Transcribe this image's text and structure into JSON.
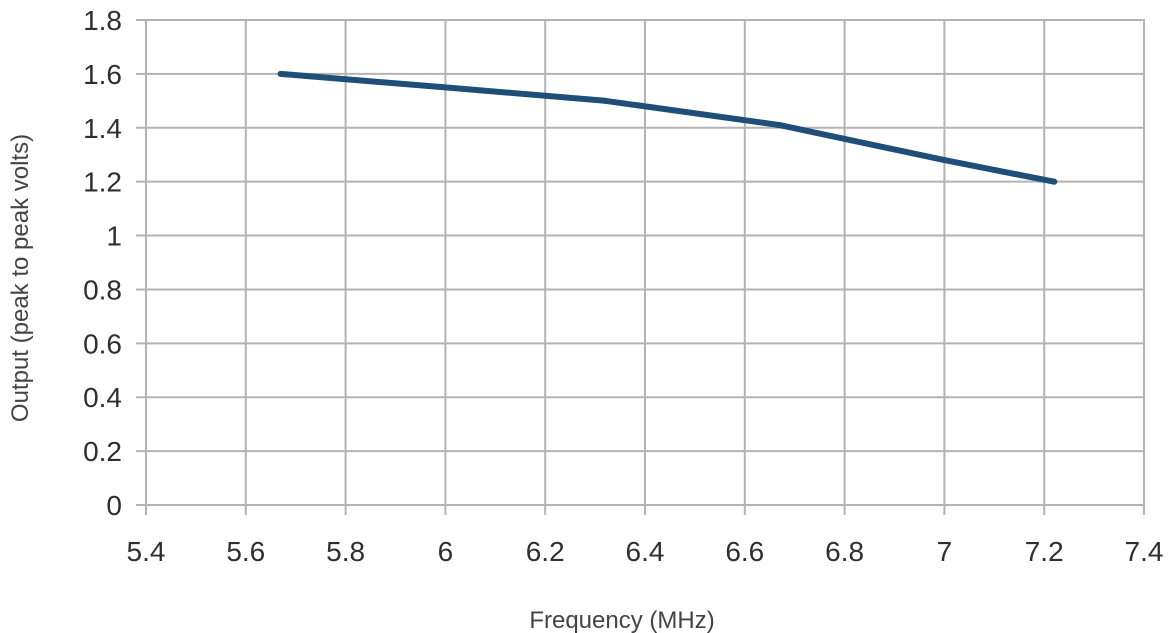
{
  "chart_data": {
    "type": "line",
    "title": "",
    "xlabel": "Frequency (MHz)",
    "ylabel": "Output (peak to peak volts)",
    "xlim": [
      5.4,
      7.4
    ],
    "ylim": [
      0,
      1.8
    ],
    "x_ticks": [
      "5.4",
      "5.6",
      "5.8",
      "6",
      "6.2",
      "6.4",
      "6.6",
      "6.8",
      "7",
      "7.2",
      "7.4"
    ],
    "y_ticks": [
      "0",
      "0.2",
      "0.4",
      "0.6",
      "0.8",
      "1",
      "1.2",
      "1.4",
      "1.6",
      "1.8"
    ],
    "grid": true,
    "series": [
      {
        "color": "#1f4e79",
        "x": [
          5.67,
          6.0,
          6.32,
          6.67,
          7.0,
          7.22
        ],
        "y": [
          1.6,
          1.55,
          1.5,
          1.41,
          1.28,
          1.2
        ]
      }
    ]
  }
}
